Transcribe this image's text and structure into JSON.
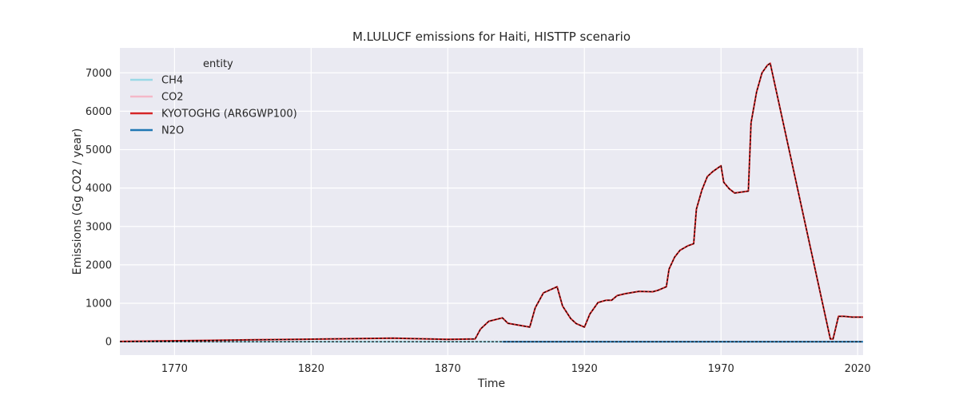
{
  "chart_data": {
    "type": "line",
    "title": "M.LULUCF emissions for Haiti, HISTTP scenario",
    "xlabel": "Time",
    "ylabel": "Emissions (Gg CO2 / year)",
    "xlim": [
      1750,
      2022
    ],
    "ylim": [
      -350,
      7650
    ],
    "xticks": [
      1770,
      1820,
      1870,
      1920,
      1970,
      2020
    ],
    "yticks": [
      0,
      1000,
      2000,
      3000,
      4000,
      5000,
      6000,
      7000
    ],
    "grid": true,
    "legend_title": "entity",
    "legend_position": "top-left",
    "series": [
      {
        "name": "CH4",
        "color": "#9ad8e6",
        "style": "solid",
        "x": [
          1750,
          1890
        ],
        "y": [
          0,
          0
        ]
      },
      {
        "name": "CO2",
        "color": "#f4b8c8",
        "style": "solid",
        "x": [
          1750,
          1800,
          1850,
          1870,
          1880,
          1882,
          1885,
          1890,
          1892,
          1900,
          1902,
          1905,
          1910,
          1912,
          1915,
          1917,
          1920,
          1922,
          1925,
          1928,
          1930,
          1932,
          1935,
          1940,
          1945,
          1947,
          1950,
          1951,
          1953,
          1955,
          1958,
          1960,
          1961,
          1963,
          1965,
          1967,
          1970,
          1971,
          1973,
          1975,
          1980,
          1981,
          1983,
          1985,
          1987,
          1988,
          2010,
          2011,
          2013,
          2015,
          2018,
          2022
        ],
        "y": [
          5,
          50,
          90,
          60,
          70,
          330,
          530,
          620,
          480,
          380,
          880,
          1270,
          1430,
          930,
          600,
          470,
          380,
          720,
          1020,
          1080,
          1080,
          1200,
          1250,
          1310,
          1300,
          1340,
          1430,
          1890,
          2200,
          2380,
          2500,
          2550,
          3450,
          3950,
          4300,
          4430,
          4580,
          4150,
          3980,
          3870,
          3920,
          5700,
          6500,
          7000,
          7200,
          7250,
          70,
          70,
          660,
          660,
          640,
          640
        ]
      },
      {
        "name": "KYOTOGHG (AR6GWP100)",
        "color": "#d62728",
        "style": "solid",
        "x": [
          1750,
          1800,
          1850,
          1870,
          1880,
          1882,
          1885,
          1890,
          1892,
          1900,
          1902,
          1905,
          1910,
          1912,
          1915,
          1917,
          1920,
          1922,
          1925,
          1928,
          1930,
          1932,
          1935,
          1940,
          1945,
          1947,
          1950,
          1951,
          1953,
          1955,
          1958,
          1960,
          1961,
          1963,
          1965,
          1967,
          1970,
          1971,
          1973,
          1975,
          1980,
          1981,
          1983,
          1985,
          1987,
          1988,
          2010,
          2011,
          2013,
          2015,
          2018,
          2022
        ],
        "y": [
          5,
          50,
          90,
          60,
          70,
          330,
          530,
          620,
          480,
          380,
          880,
          1270,
          1430,
          930,
          600,
          470,
          380,
          720,
          1020,
          1080,
          1080,
          1200,
          1250,
          1310,
          1300,
          1340,
          1430,
          1890,
          2200,
          2380,
          2500,
          2550,
          3450,
          3950,
          4300,
          4430,
          4580,
          4150,
          3980,
          3870,
          3920,
          5700,
          6500,
          7000,
          7200,
          7250,
          70,
          70,
          660,
          660,
          640,
          640
        ]
      },
      {
        "name": "N2O",
        "color": "#1f77b4",
        "style": "solid",
        "x": [
          1890,
          2022
        ],
        "y": [
          0,
          0
        ]
      },
      {
        "name": "",
        "color": "#000000",
        "style": "dashed",
        "x": [
          1750,
          1800,
          1850,
          1870,
          1880,
          1882,
          1885,
          1890,
          1892,
          1900,
          1902,
          1905,
          1910,
          1912,
          1915,
          1917,
          1920,
          1922,
          1925,
          1928,
          1930,
          1932,
          1935,
          1940,
          1945,
          1947,
          1950,
          1951,
          1953,
          1955,
          1958,
          1960,
          1961,
          1963,
          1965,
          1967,
          1970,
          1971,
          1973,
          1975,
          1980,
          1981,
          1983,
          1985,
          1987,
          1988,
          2010,
          2011,
          2013,
          2015,
          2018,
          2022
        ],
        "y": [
          5,
          50,
          90,
          60,
          70,
          330,
          530,
          620,
          480,
          380,
          880,
          1270,
          1430,
          930,
          600,
          470,
          380,
          720,
          1020,
          1080,
          1080,
          1200,
          1250,
          1310,
          1300,
          1340,
          1430,
          1890,
          2200,
          2380,
          2500,
          2550,
          3450,
          3950,
          4300,
          4430,
          4580,
          4150,
          3980,
          3870,
          3920,
          5700,
          6500,
          7000,
          7200,
          7250,
          70,
          70,
          660,
          660,
          640,
          640
        ]
      },
      {
        "name": "",
        "color": "#000000",
        "style": "dashed",
        "x": [
          1750,
          2022
        ],
        "y": [
          0,
          0
        ]
      }
    ]
  }
}
